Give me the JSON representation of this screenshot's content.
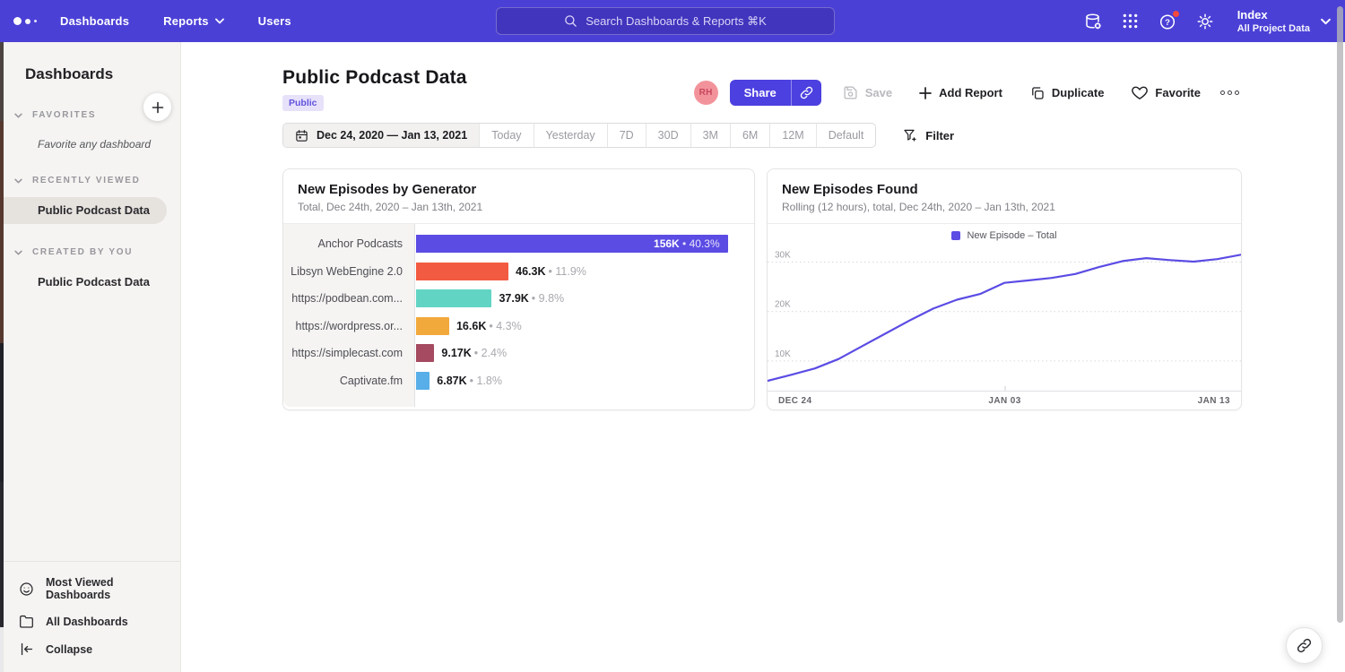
{
  "topbar": {
    "nav": [
      "Dashboards",
      "Reports",
      "Users"
    ],
    "search": {
      "placeholder": "Search Dashboards & Reports ⌘K",
      "icon": "search-icon"
    },
    "right_icons": [
      "database-icon",
      "apps-grid-icon",
      "help-icon",
      "settings-icon"
    ],
    "project": {
      "name": "Index",
      "scope": "All Project Data"
    }
  },
  "sidebar": {
    "title": "Dashboards",
    "sections": [
      {
        "label": "FAVORITES",
        "empty_text": "Favorite any dashboard",
        "items": []
      },
      {
        "label": "RECENTLY VIEWED",
        "items": [
          {
            "label": "Public Podcast Data",
            "active": true
          }
        ]
      },
      {
        "label": "CREATED BY YOU",
        "items": [
          {
            "label": "Public Podcast Data",
            "active": false
          }
        ]
      }
    ],
    "footer": [
      {
        "label": "Most Viewed Dashboards",
        "icon": "smiley-icon"
      },
      {
        "label": "All Dashboards",
        "icon": "folder-icon"
      },
      {
        "label": "Collapse",
        "icon": "collapse-icon"
      }
    ]
  },
  "header": {
    "title": "Public Podcast Data",
    "badge": "Public",
    "avatar_initials": "RH",
    "actions": {
      "share": "Share",
      "save": "Save",
      "add_report": "Add Report",
      "duplicate": "Duplicate",
      "favorite": "Favorite"
    }
  },
  "toolbar": {
    "date_range": "Dec 24, 2020 — Jan 13, 2021",
    "presets": [
      "Today",
      "Yesterday",
      "7D",
      "30D",
      "3M",
      "6M",
      "12M",
      "Default"
    ],
    "filter_label": "Filter"
  },
  "chart_data": [
    {
      "type": "bar",
      "orientation": "horizontal",
      "title": "New Episodes by Generator",
      "subtitle": "Total, Dec 24th, 2020 – Jan 13th, 2021",
      "categories": [
        "Anchor Podcasts",
        "Libsyn WebEngine 2.0",
        "https://podbean.com...",
        "https://wordpress.or...",
        "https://simplecast.com",
        "Captivate.fm"
      ],
      "values": [
        156000,
        46300,
        37900,
        16600,
        9170,
        6870
      ],
      "value_labels": [
        "156K",
        "46.3K",
        "37.9K",
        "16.6K",
        "9.17K",
        "6.87K"
      ],
      "percent_labels": [
        "40.3%",
        "11.9%",
        "9.8%",
        "4.3%",
        "2.4%",
        "1.8%"
      ],
      "colors": [
        "#5b4ce4",
        "#f25b41",
        "#62d4c4",
        "#f2a93c",
        "#a54a60",
        "#58aee8"
      ],
      "axis_max": 164700,
      "grid": false
    },
    {
      "type": "line",
      "title": "New Episodes Found",
      "subtitle": "Rolling (12 hours), total, Dec 24th, 2020 – Jan 13th, 2021",
      "legend_label": "New Episode – Total",
      "color": "#5b4ce4",
      "x_ticks": [
        "DEC 24",
        "JAN 03",
        "JAN 13"
      ],
      "y_gridlines": [
        {
          "label": "10K",
          "value": 10000
        },
        {
          "label": "20K",
          "value": 20000
        },
        {
          "label": "30K",
          "value": 30000
        }
      ],
      "y_min": 4000,
      "y_max": 33000,
      "x": [
        "Dec 24",
        "Dec 25",
        "Dec 26",
        "Dec 27",
        "Dec 28",
        "Dec 29",
        "Dec 30",
        "Dec 31",
        "Jan 01",
        "Jan 02",
        "Jan 03",
        "Jan 04",
        "Jan 05",
        "Jan 06",
        "Jan 07",
        "Jan 08",
        "Jan 09",
        "Jan 10",
        "Jan 11",
        "Jan 12",
        "Jan 13"
      ],
      "values": [
        6000,
        7200,
        8500,
        10400,
        13000,
        15600,
        18200,
        20600,
        22400,
        23600,
        25800,
        26300,
        26800,
        27600,
        29000,
        30200,
        30800,
        30400,
        30100,
        30600,
        31500
      ],
      "grid": "dotted-horizontal",
      "legend_position": "top-center"
    }
  ],
  "palette": {
    "topbar": "#4b40d6",
    "accent": "#4c40e0",
    "notification_dot": "#f5493d",
    "sidebar_bg": "#f5f4f2",
    "badge_bg": "#e7e2fa",
    "badge_text": "#6152de"
  },
  "floating": {
    "icon": "link-icon"
  }
}
